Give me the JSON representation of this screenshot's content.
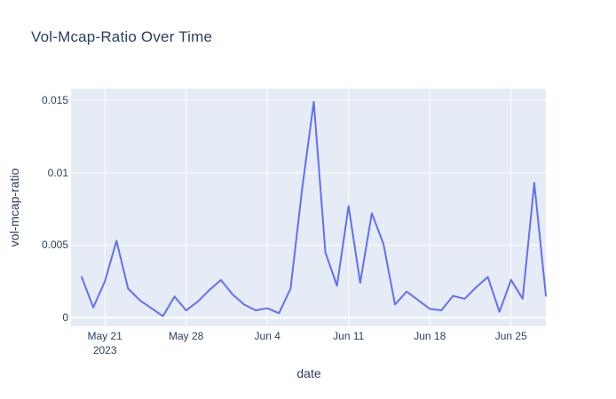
{
  "colors": {
    "line": "#636efa",
    "plot_background": "#e5ecf6",
    "gridline": "#ffffff",
    "text": "#2a3f5f",
    "page_background": "#ffffff"
  },
  "chart_data": {
    "type": "line",
    "title": "Vol-Mcap-Ratio Over Time",
    "xlabel": "date",
    "ylabel": "vol-mcap-ratio",
    "x": [
      "2023-05-19",
      "2023-05-20",
      "2023-05-21",
      "2023-05-22",
      "2023-05-23",
      "2023-05-24",
      "2023-05-25",
      "2023-05-26",
      "2023-05-27",
      "2023-05-28",
      "2023-05-29",
      "2023-05-30",
      "2023-05-31",
      "2023-06-01",
      "2023-06-02",
      "2023-06-03",
      "2023-06-04",
      "2023-06-05",
      "2023-06-06",
      "2023-06-07",
      "2023-06-08",
      "2023-06-09",
      "2023-06-10",
      "2023-06-11",
      "2023-06-12",
      "2023-06-13",
      "2023-06-14",
      "2023-06-15",
      "2023-06-16",
      "2023-06-17",
      "2023-06-18",
      "2023-06-19",
      "2023-06-20",
      "2023-06-21",
      "2023-06-22",
      "2023-06-23",
      "2023-06-24",
      "2023-06-25",
      "2023-06-26",
      "2023-06-27",
      "2023-06-28"
    ],
    "y": [
      0.0028,
      0.0007,
      0.0025,
      0.0053,
      0.002,
      0.0012,
      0.00065,
      0.0001,
      0.00145,
      0.0005,
      0.0011,
      0.0019,
      0.0026,
      0.0016,
      0.0009,
      0.0005,
      0.00065,
      0.0003,
      0.002,
      0.0089,
      0.0149,
      0.0045,
      0.0022,
      0.0077,
      0.0024,
      0.0072,
      0.0051,
      0.0009,
      0.0018,
      0.0012,
      0.0006,
      0.0005,
      0.0015,
      0.0013,
      0.0021,
      0.0028,
      0.0004,
      0.0026,
      0.0013,
      0.0093,
      0.0015
    ],
    "x_ticks": [
      {
        "label": "May 21",
        "sublabel": "2023",
        "index": 2
      },
      {
        "label": "May 28",
        "index": 9
      },
      {
        "label": "Jun 4",
        "index": 16
      },
      {
        "label": "Jun 11",
        "index": 23
      },
      {
        "label": "Jun 18",
        "index": 30
      },
      {
        "label": "Jun 25",
        "index": 37
      }
    ],
    "y_ticks": [
      {
        "label": "0",
        "value": 0
      },
      {
        "label": "0.005",
        "value": 0.005
      },
      {
        "label": "0.01",
        "value": 0.01
      },
      {
        "label": "0.015",
        "value": 0.015
      }
    ],
    "ylim": [
      -0.0006,
      0.0158
    ],
    "xlim_index": [
      -0.92,
      40
    ],
    "grid": true,
    "legend": "none"
  }
}
